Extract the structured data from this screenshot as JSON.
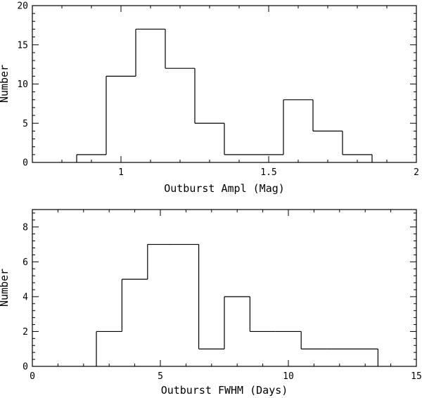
{
  "chart_data": [
    {
      "type": "histogram",
      "xlabel": "Outburst Ampl (Mag)",
      "ylabel": "Number",
      "xlim": [
        0.7,
        2.0
      ],
      "ylim": [
        0,
        20
      ],
      "xticks": [
        1,
        1.5,
        2
      ],
      "xtick_labels": [
        "1",
        "1.5",
        "2"
      ],
      "yticks": [
        0,
        5,
        10,
        15,
        20
      ],
      "ytick_labels": [
        "0",
        "5",
        "10",
        "15",
        "20"
      ],
      "bin_edges": [
        0.85,
        0.95,
        1.05,
        1.15,
        1.25,
        1.35,
        1.45,
        1.55,
        1.65,
        1.75,
        1.85
      ],
      "counts": [
        1,
        11,
        17,
        12,
        5,
        1,
        1,
        8,
        4,
        1
      ],
      "style": "step",
      "grid": false,
      "colors": {
        "line": "#000000",
        "background": "#ffffff"
      }
    },
    {
      "type": "histogram",
      "xlabel": "Outburst FWHM (Days)",
      "ylabel": "Number",
      "xlim": [
        0,
        15
      ],
      "ylim": [
        0,
        9
      ],
      "xticks": [
        0,
        5,
        10,
        15
      ],
      "xtick_labels": [
        "0",
        "5",
        "10",
        "15"
      ],
      "yticks": [
        0,
        2,
        4,
        6,
        8
      ],
      "ytick_labels": [
        "0",
        "2",
        "4",
        "6",
        "8"
      ],
      "bin_edges": [
        2.5,
        3.5,
        4.5,
        5.5,
        6.5,
        7.5,
        8.5,
        9.5,
        10.5,
        11.5,
        12.5,
        13.5
      ],
      "counts": [
        2,
        5,
        7,
        7,
        1,
        4,
        2,
        2,
        1,
        1,
        1
      ],
      "style": "step",
      "grid": false,
      "colors": {
        "line": "#000000",
        "background": "#ffffff"
      }
    }
  ]
}
